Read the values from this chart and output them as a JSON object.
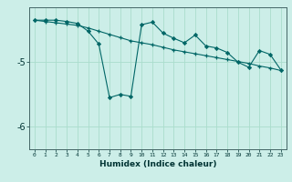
{
  "xlabel": "Humidex (Indice chaleur)",
  "background_color": "#cceee8",
  "grid_color": "#aaddcc",
  "line_color": "#006666",
  "x": [
    0,
    1,
    2,
    3,
    4,
    5,
    6,
    7,
    8,
    9,
    10,
    11,
    12,
    13,
    14,
    15,
    16,
    17,
    18,
    19,
    20,
    21,
    22,
    23
  ],
  "y_jagged": [
    -4.35,
    -4.35,
    -4.35,
    -4.37,
    -4.4,
    -4.52,
    -4.72,
    -5.55,
    -5.5,
    -5.53,
    -4.42,
    -4.38,
    -4.55,
    -4.63,
    -4.7,
    -4.58,
    -4.75,
    -4.78,
    -4.85,
    -5.0,
    -5.08,
    -4.82,
    -4.88,
    -5.12
  ],
  "y_linear": [
    -4.35,
    -4.37,
    -4.39,
    -4.41,
    -4.43,
    -4.47,
    -4.52,
    -4.57,
    -4.62,
    -4.67,
    -4.7,
    -4.73,
    -4.77,
    -4.81,
    -4.84,
    -4.87,
    -4.9,
    -4.93,
    -4.96,
    -4.99,
    -5.02,
    -5.06,
    -5.09,
    -5.13
  ],
  "ylim": [
    -6.35,
    -4.15
  ],
  "xlim": [
    -0.5,
    23.5
  ],
  "yticks": [
    -6,
    -5
  ],
  "ytick_labels": [
    "-6",
    "-5"
  ],
  "xticks": [
    0,
    1,
    2,
    3,
    4,
    5,
    6,
    7,
    8,
    9,
    10,
    11,
    12,
    13,
    14,
    15,
    16,
    17,
    18,
    19,
    20,
    21,
    22,
    23
  ]
}
